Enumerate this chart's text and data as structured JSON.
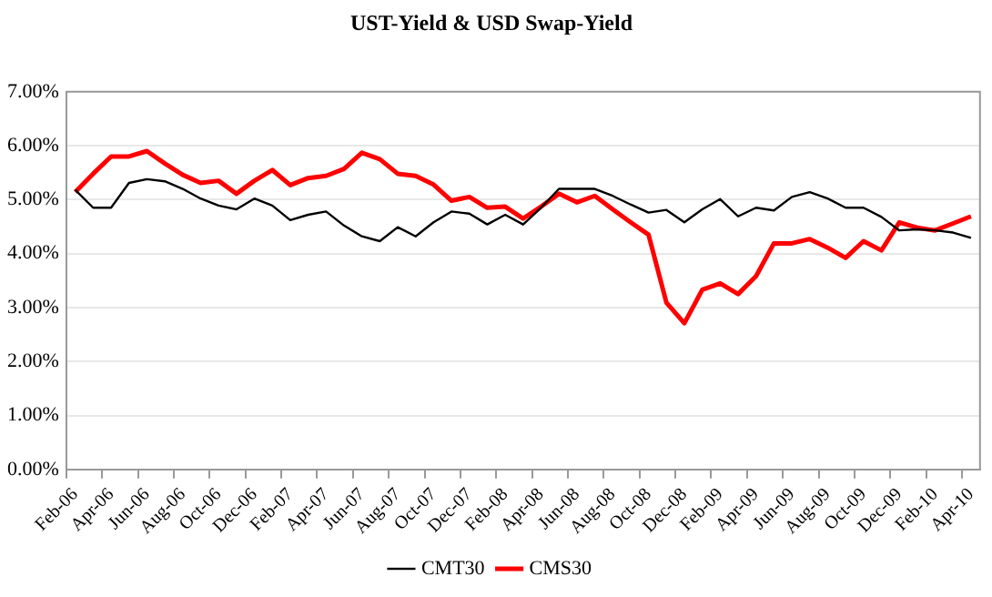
{
  "chart_data": {
    "type": "line",
    "title": "UST-Yield & USD Swap-Yield",
    "categories": [
      "Feb-06",
      null,
      "Apr-06",
      null,
      "Jun-06",
      null,
      "Aug-06",
      null,
      "Oct-06",
      null,
      "Dec-06",
      null,
      "Feb-07",
      null,
      "Apr-07",
      null,
      "Jun-07",
      null,
      "Aug-07",
      null,
      "Oct-07",
      null,
      "Dec-07",
      null,
      "Feb-08",
      null,
      "Apr-08",
      null,
      "Jun-08",
      null,
      "Aug-08",
      null,
      "Oct-08",
      null,
      "Dec-08",
      null,
      "Feb-09",
      null,
      "Apr-09",
      null,
      "Jun-09",
      null,
      "Aug-09",
      null,
      "Oct-09",
      null,
      "Dec-09",
      null,
      "Feb-10",
      null,
      "Apr-10"
    ],
    "series": [
      {
        "name": "CMT30",
        "color": "#000000",
        "values": [
          5.18,
          4.85,
          4.85,
          5.31,
          5.38,
          5.34,
          5.2,
          5.02,
          4.89,
          4.82,
          5.02,
          4.89,
          4.62,
          4.72,
          4.78,
          4.52,
          4.32,
          4.23,
          4.49,
          4.32,
          4.58,
          4.78,
          4.74,
          4.54,
          4.72,
          4.54,
          4.85,
          5.2,
          5.2,
          5.2,
          5.07,
          4.91,
          4.76,
          4.81,
          4.58,
          4.82,
          5.01,
          4.69,
          4.85,
          4.8,
          5.05,
          5.14,
          5.02,
          4.85,
          4.85,
          4.68,
          4.43,
          4.45,
          4.43,
          4.39,
          4.29
        ]
      },
      {
        "name": "CMS30",
        "color": "#ff0000",
        "values": [
          5.14,
          5.48,
          5.8,
          5.8,
          5.9,
          5.67,
          5.46,
          5.31,
          5.35,
          5.11,
          5.35,
          5.55,
          5.27,
          5.4,
          5.44,
          5.57,
          5.87,
          5.75,
          5.48,
          5.44,
          5.28,
          4.98,
          5.05,
          4.85,
          4.87,
          4.65,
          4.87,
          5.11,
          4.95,
          5.07,
          4.82,
          4.58,
          4.35,
          3.09,
          2.71,
          3.33,
          3.45,
          3.25,
          3.58,
          4.19,
          4.19,
          4.27,
          4.11,
          3.92,
          4.23,
          4.06,
          4.58,
          4.48,
          4.43,
          4.56,
          4.69
        ]
      }
    ],
    "ylim": [
      0,
      7
    ],
    "yticks": [
      {
        "value": 0,
        "label": "0.00%"
      },
      {
        "value": 1,
        "label": "1.00%"
      },
      {
        "value": 2,
        "label": "2.00%"
      },
      {
        "value": 3,
        "label": "3.00%"
      },
      {
        "value": 4,
        "label": "4.00%"
      },
      {
        "value": 5,
        "label": "5.00%"
      },
      {
        "value": 6,
        "label": "6.00%"
      },
      {
        "value": 7,
        "label": "7.00%"
      }
    ],
    "grid": "y",
    "legend": "bottom",
    "marker": "none",
    "line_style": "solid"
  }
}
